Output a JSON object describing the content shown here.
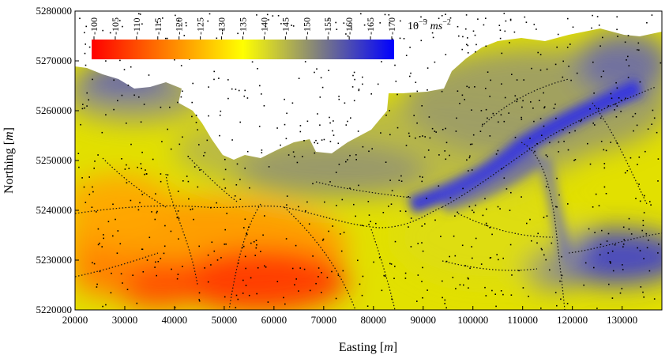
{
  "map": {
    "x_axis": {
      "label_main": "Easting ",
      "label_unit": "m",
      "range": [
        20000,
        138000
      ],
      "ticks": [
        "20000",
        "30000",
        "40000",
        "50000",
        "60000",
        "70000",
        "80000",
        "90000",
        "100000",
        "110000",
        "120000",
        "130000"
      ]
    },
    "y_axis": {
      "label_main": "Northing ",
      "label_unit": "m",
      "range": [
        5220000,
        5280000
      ],
      "ticks": [
        "5220000",
        "5230000",
        "5240000",
        "5250000",
        "5260000",
        "5270000",
        "5280000"
      ]
    },
    "colorbar": {
      "ticks": [
        "-100",
        "-105",
        "-110",
        "-115",
        "-120",
        "-125",
        "-130",
        "-135",
        "-140",
        "-145",
        "-150",
        "-155",
        "-160",
        "-165",
        "-170"
      ],
      "unit_base": "10",
      "unit_exp": "−5",
      "unit_text": "ms",
      "unit_text_exp": "−2",
      "colors": [
        "#ff0000",
        "#ffff00",
        "#0000ff"
      ]
    },
    "colors": {
      "red": "#ff2a00",
      "orange": "#ff9a00",
      "yellow": "#e6e600",
      "olive": "#b9b94a",
      "slate": "#7a7a9a",
      "blue": "#2f2fe0"
    }
  }
}
